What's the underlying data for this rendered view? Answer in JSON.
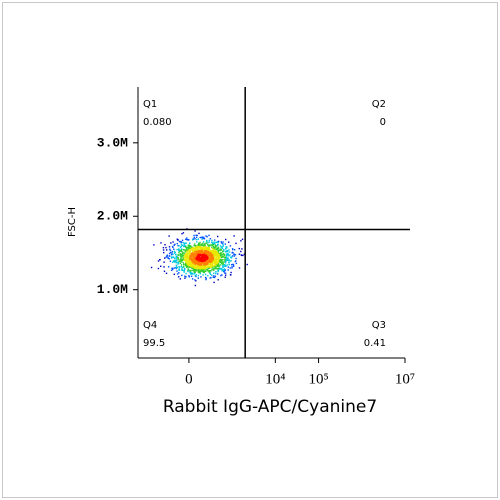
{
  "chart_data": {
    "type": "quadrant-density",
    "y_label": "FSC-H",
    "x_label": "Rabbit IgG-APC/Cyanine7",
    "xlim": [
      -1500,
      10000000
    ],
    "xticks": [
      {
        "value": 0,
        "label": "0"
      },
      {
        "value": 10000,
        "label": "10⁴"
      },
      {
        "value": 100000,
        "label": "10⁵"
      },
      {
        "value": 10000000,
        "label": "10⁷"
      }
    ],
    "ylim": [
      70000,
      3760000
    ],
    "yticks": [
      {
        "value": 1000000,
        "label": "1.0M"
      },
      {
        "value": 2000000,
        "label": "2.0M"
      },
      {
        "value": 3000000,
        "label": "3.0M"
      }
    ],
    "quadrant_gate": {
      "x": 2000,
      "y": 1820000
    },
    "quadrants": {
      "names": [
        "Q1",
        "Q2",
        "Q3",
        "Q4"
      ],
      "values": [
        0.08,
        0,
        0.41,
        99.5
      ],
      "value_labels": [
        "0.080",
        "0",
        "0.41",
        "99.5"
      ]
    }
  }
}
